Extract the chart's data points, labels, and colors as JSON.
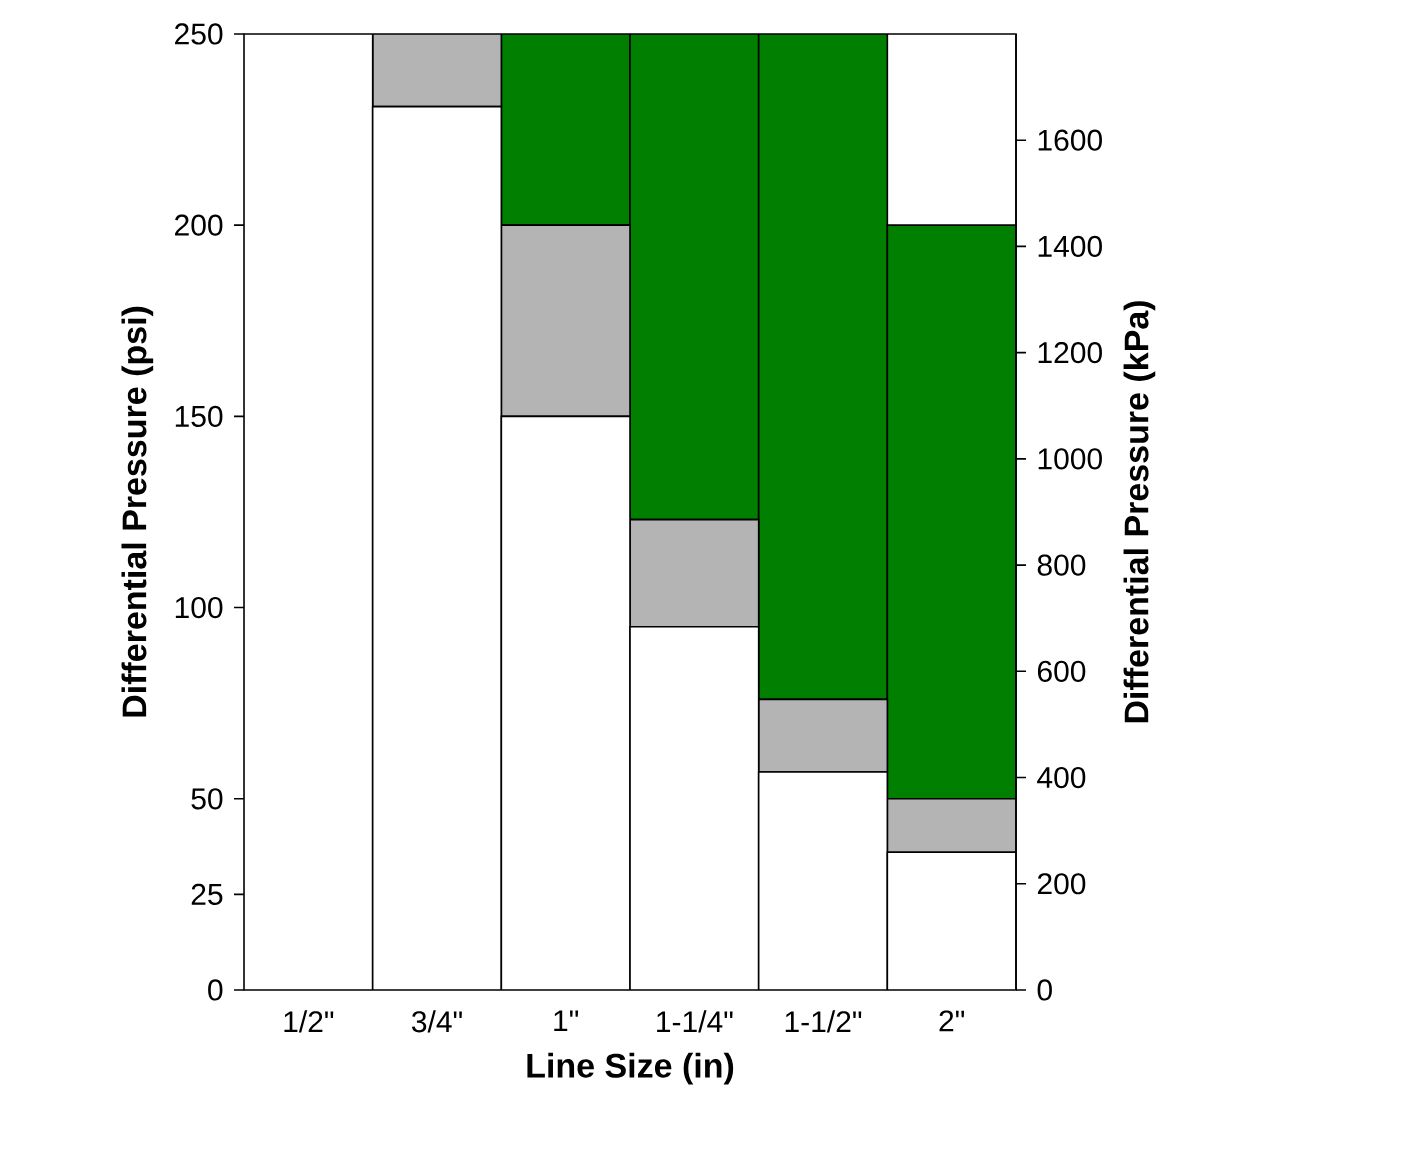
{
  "chart_data": {
    "type": "bar",
    "stacked": true,
    "xlabel": "Line Size (in)",
    "ylabel": "Differential Pressure (psi)",
    "y2label": "Differential Pressure (kPa)",
    "categories": [
      "1/2\"",
      "3/4\"",
      "1\"",
      "1-1/4\"",
      "1-1/2\"",
      "2\""
    ],
    "series": [
      {
        "color": "#ffffff",
        "values": [
          250,
          231,
          150,
          95,
          57,
          36
        ]
      },
      {
        "color": "#b4b4b4",
        "values": [
          0,
          19,
          50,
          28,
          19,
          14
        ]
      },
      {
        "color": "#007f00",
        "values": [
          0,
          0,
          50,
          127,
          174,
          150
        ]
      }
    ],
    "ylim": [
      0,
      250
    ],
    "yticks": [
      0,
      25,
      50,
      100,
      150,
      200,
      250
    ],
    "y2lim": [
      0,
      1800
    ],
    "y2ticks": [
      0,
      200,
      400,
      600,
      800,
      1000,
      1200,
      1400,
      1600
    ],
    "grid": false
  }
}
